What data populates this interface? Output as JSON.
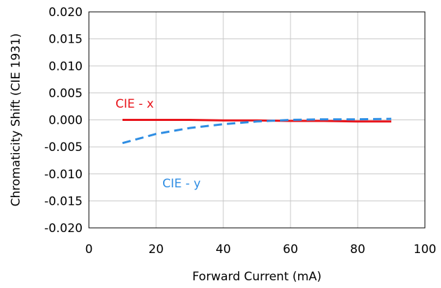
{
  "chart_data": {
    "type": "line",
    "title": "",
    "xlabel": "Forward Current (mA)",
    "ylabel": "Chromaticity Shift (CIE 1931)",
    "xlim": [
      0,
      100
    ],
    "ylim": [
      -0.02,
      0.02
    ],
    "x_ticks": [
      "0",
      "20",
      "40",
      "60",
      "80",
      "100"
    ],
    "y_ticks": [
      "0.020",
      "0.015",
      "0.010",
      "0.005",
      "0.000",
      "-0.005",
      "-0.010",
      "-0.015",
      "-0.020"
    ],
    "grid": true,
    "legend": "none",
    "series": [
      {
        "name": "CIE - x",
        "color": "#e8141b",
        "line_style": "solid",
        "x": [
          10,
          20,
          30,
          40,
          50,
          60,
          70,
          80,
          90
        ],
        "y": [
          0.0,
          0.0,
          0.0,
          -0.0001,
          -0.0001,
          -0.0002,
          -0.0002,
          -0.0003,
          -0.0003
        ]
      },
      {
        "name": "CIE - y",
        "color": "#2e8de3",
        "line_style": "dashed",
        "x": [
          10,
          20,
          30,
          40,
          50,
          60,
          70,
          80,
          90
        ],
        "y": [
          -0.0043,
          -0.0026,
          -0.0015,
          -0.0008,
          -0.0003,
          0.0,
          0.0001,
          0.0001,
          0.0002
        ]
      }
    ],
    "annotations": [
      {
        "text": "CIE - x",
        "color": "#e8141b"
      },
      {
        "text": "CIE - y",
        "color": "#2e8de3"
      }
    ]
  }
}
